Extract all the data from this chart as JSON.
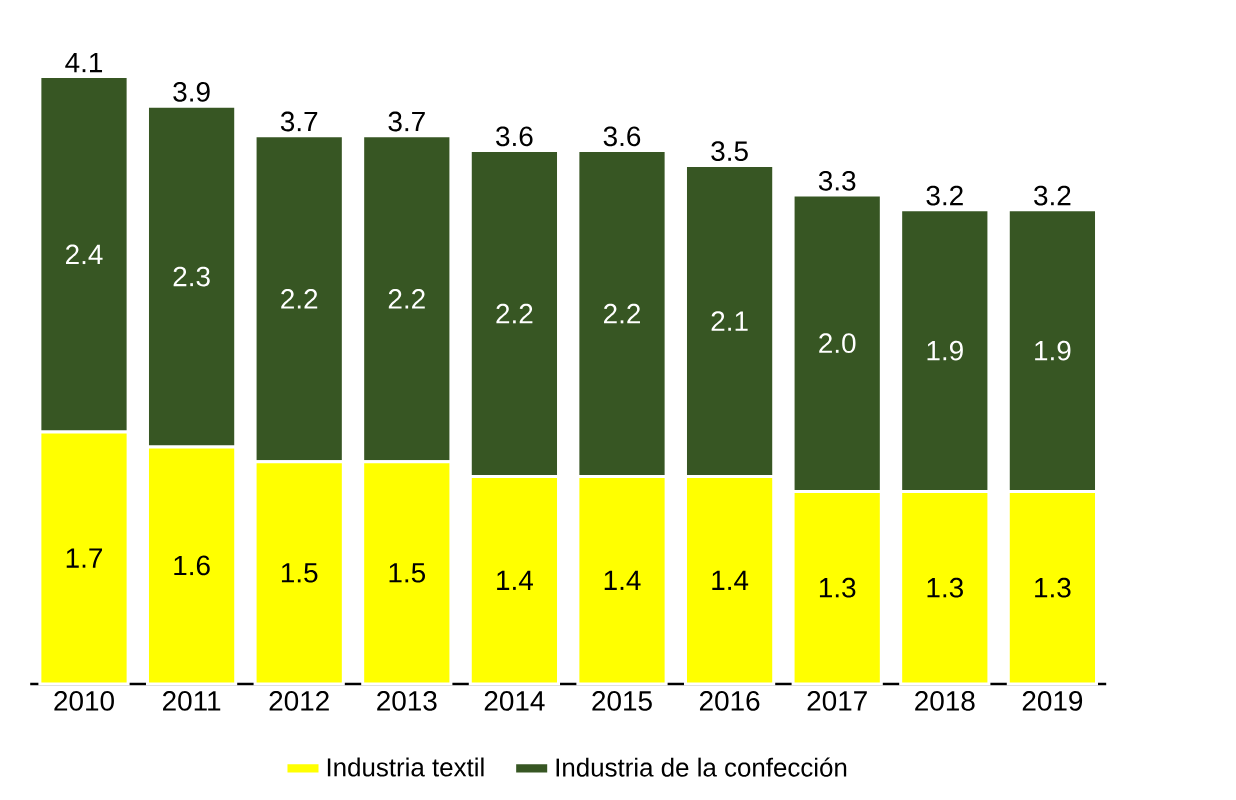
{
  "chart_data": {
    "type": "bar",
    "stacked": true,
    "legend": "bottom",
    "categories": [
      "2010",
      "2011",
      "2012",
      "2013",
      "2014",
      "2015",
      "2016",
      "2017",
      "2018",
      "2019"
    ],
    "series": [
      {
        "name": "Industria textil",
        "color": "#ffff00",
        "values": [
          1.7,
          1.6,
          1.5,
          1.5,
          1.4,
          1.4,
          1.4,
          1.3,
          1.3,
          1.3
        ],
        "value_labels": [
          "1.7",
          "1.6",
          "1.5",
          "1.5",
          "1.4",
          "1.4",
          "1.4",
          "1.3",
          "1.3",
          "1.3"
        ]
      },
      {
        "name": "Industria de la confección",
        "color": "#375623",
        "values": [
          2.4,
          2.3,
          2.2,
          2.2,
          2.2,
          2.2,
          2.1,
          2.0,
          1.9,
          1.9
        ],
        "value_labels": [
          "2.4",
          "2.3",
          "2.2",
          "2.2",
          "2.2",
          "2.2",
          "2.1",
          "2.0",
          "1.9",
          "1.9"
        ]
      }
    ],
    "totals": [
      "4.1",
      "3.9",
      "3.7",
      "3.7",
      "3.6",
      "3.6",
      "3.5",
      "3.3",
      "3.2",
      "3.2"
    ]
  }
}
